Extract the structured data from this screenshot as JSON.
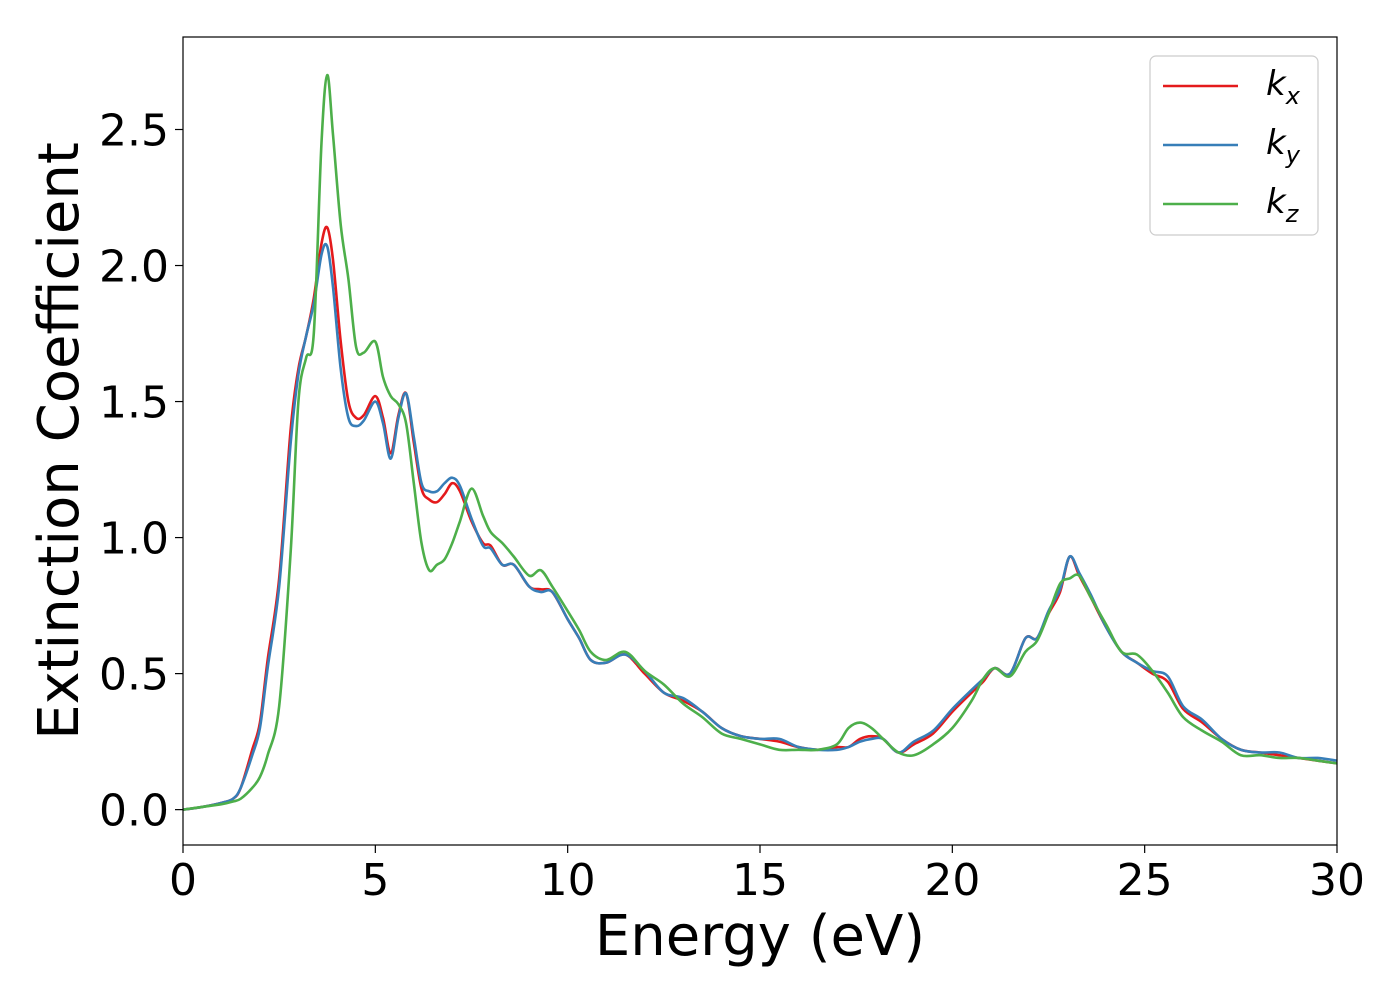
{
  "chart_data": {
    "type": "line",
    "xlabel": "Energy (eV)",
    "ylabel": "Extinction Coefficient",
    "xlim": [
      0,
      30
    ],
    "ylim": [
      -0.13,
      2.84
    ],
    "xticks": [
      "0",
      "5",
      "10",
      "15",
      "20",
      "25",
      "30"
    ],
    "yticks": [
      "0.0",
      "0.5",
      "1.0",
      "1.5",
      "2.0",
      "2.5"
    ],
    "grid": false,
    "legend_position": "top-right",
    "x": [
      0,
      0.5,
      1,
      1.3,
      1.5,
      1.8,
      2,
      2.2,
      2.5,
      2.8,
      3,
      3.2,
      3.4,
      3.6,
      3.75,
      3.9,
      4.1,
      4.3,
      4.5,
      4.7,
      5,
      5.2,
      5.4,
      5.6,
      5.8,
      6,
      6.2,
      6.4,
      6.6,
      6.8,
      7,
      7.2,
      7.5,
      7.8,
      8,
      8.3,
      8.6,
      9,
      9.3,
      9.6,
      10,
      10.3,
      10.6,
      11,
      11.5,
      12,
      12.5,
      13,
      13.5,
      14,
      14.5,
      15,
      15.5,
      16,
      16.5,
      17,
      17.3,
      17.6,
      17.9,
      18.2,
      18.6,
      19,
      19.5,
      20,
      20.5,
      20.8,
      21.1,
      21.5,
      21.9,
      22.2,
      22.5,
      22.8,
      23.05,
      23.3,
      23.6,
      24,
      24.4,
      24.8,
      25.2,
      25.6,
      26,
      26.5,
      27,
      27.5,
      28,
      28.5,
      29,
      29.5,
      30
    ],
    "series": [
      {
        "name": "k_x",
        "label": "k",
        "subscript": "x",
        "color": "#e41a1c",
        "y": [
          0,
          0.01,
          0.025,
          0.04,
          0.08,
          0.22,
          0.32,
          0.55,
          0.85,
          1.4,
          1.62,
          1.74,
          1.88,
          2.08,
          2.14,
          2.02,
          1.72,
          1.5,
          1.44,
          1.45,
          1.52,
          1.44,
          1.31,
          1.45,
          1.53,
          1.35,
          1.18,
          1.14,
          1.13,
          1.16,
          1.2,
          1.17,
          1.06,
          0.98,
          0.97,
          0.9,
          0.9,
          0.82,
          0.81,
          0.8,
          0.7,
          0.63,
          0.55,
          0.54,
          0.57,
          0.5,
          0.43,
          0.4,
          0.36,
          0.3,
          0.27,
          0.26,
          0.25,
          0.23,
          0.22,
          0.23,
          0.23,
          0.26,
          0.27,
          0.26,
          0.21,
          0.24,
          0.28,
          0.36,
          0.43,
          0.47,
          0.52,
          0.5,
          0.63,
          0.63,
          0.72,
          0.8,
          0.93,
          0.86,
          0.78,
          0.67,
          0.58,
          0.54,
          0.5,
          0.47,
          0.37,
          0.32,
          0.26,
          0.22,
          0.21,
          0.2,
          0.19,
          0.18,
          0.17
        ]
      },
      {
        "name": "k_y",
        "label": "k",
        "subscript": "y",
        "color": "#377eb8",
        "y": [
          0,
          0.01,
          0.025,
          0.04,
          0.08,
          0.2,
          0.3,
          0.52,
          0.82,
          1.35,
          1.6,
          1.74,
          1.86,
          2.04,
          2.07,
          1.92,
          1.62,
          1.44,
          1.41,
          1.43,
          1.5,
          1.42,
          1.29,
          1.44,
          1.53,
          1.37,
          1.2,
          1.17,
          1.17,
          1.2,
          1.22,
          1.19,
          1.07,
          0.97,
          0.96,
          0.9,
          0.9,
          0.82,
          0.8,
          0.8,
          0.7,
          0.63,
          0.55,
          0.54,
          0.57,
          0.51,
          0.43,
          0.41,
          0.36,
          0.3,
          0.27,
          0.26,
          0.26,
          0.23,
          0.22,
          0.22,
          0.23,
          0.25,
          0.26,
          0.26,
          0.21,
          0.25,
          0.29,
          0.37,
          0.44,
          0.48,
          0.52,
          0.5,
          0.63,
          0.63,
          0.73,
          0.81,
          0.93,
          0.87,
          0.79,
          0.67,
          0.58,
          0.54,
          0.51,
          0.49,
          0.38,
          0.33,
          0.26,
          0.22,
          0.21,
          0.21,
          0.19,
          0.19,
          0.18
        ]
      },
      {
        "name": "k_z",
        "label": "k",
        "subscript": "z",
        "color": "#4daf4a",
        "y": [
          0,
          0.01,
          0.02,
          0.03,
          0.04,
          0.08,
          0.12,
          0.2,
          0.38,
          0.95,
          1.5,
          1.66,
          1.75,
          2.45,
          2.7,
          2.48,
          2.15,
          1.95,
          1.7,
          1.68,
          1.72,
          1.59,
          1.52,
          1.49,
          1.42,
          1.2,
          0.98,
          0.88,
          0.9,
          0.92,
          0.98,
          1.06,
          1.18,
          1.08,
          1.02,
          0.98,
          0.93,
          0.86,
          0.88,
          0.82,
          0.73,
          0.66,
          0.58,
          0.55,
          0.58,
          0.51,
          0.46,
          0.39,
          0.34,
          0.28,
          0.26,
          0.24,
          0.22,
          0.22,
          0.22,
          0.24,
          0.3,
          0.32,
          0.3,
          0.26,
          0.21,
          0.2,
          0.24,
          0.3,
          0.4,
          0.48,
          0.52,
          0.49,
          0.58,
          0.62,
          0.72,
          0.83,
          0.85,
          0.86,
          0.78,
          0.68,
          0.58,
          0.57,
          0.51,
          0.43,
          0.34,
          0.29,
          0.25,
          0.2,
          0.2,
          0.19,
          0.19,
          0.18,
          0.17
        ]
      }
    ]
  }
}
